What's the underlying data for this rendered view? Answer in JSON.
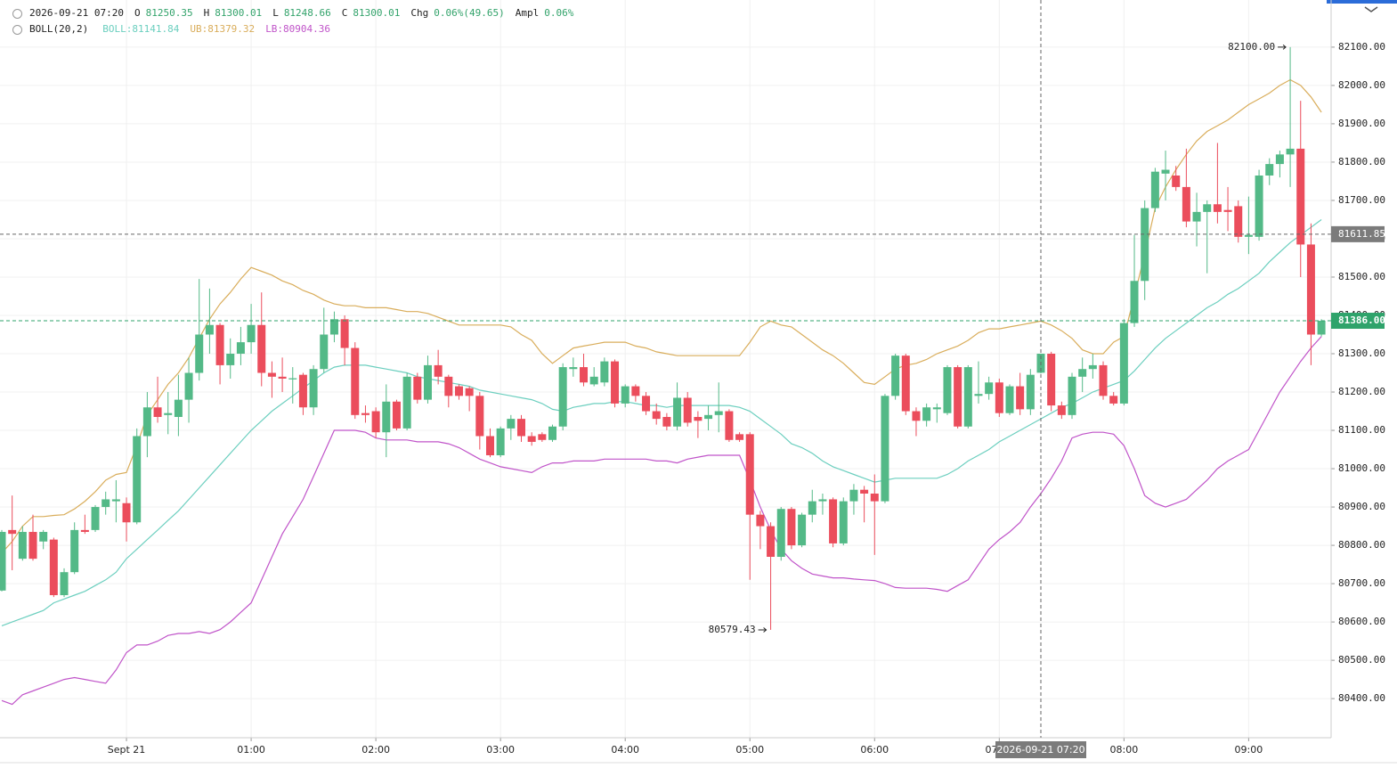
{
  "chart_data": {
    "type": "candlestick",
    "header": {
      "time": "2026-09-21 07:20",
      "fields": [
        {
          "label": "O",
          "value": "81250.35"
        },
        {
          "label": "H",
          "value": "81300.01"
        },
        {
          "label": "L",
          "value": "81248.66"
        },
        {
          "label": "C",
          "value": "81300.01"
        },
        {
          "label": "Chg",
          "value": "0.06%(49.65)"
        },
        {
          "label": "Ampl",
          "value": "0.06%"
        }
      ],
      "indicator": "BOLL(20,2)"
    },
    "up_color": "#53b987",
    "down_color": "#eb4d5c",
    "open": [
      80682,
      80840,
      80765,
      80835,
      80810,
      80815,
      80670,
      80730,
      80840,
      80840,
      80900,
      80915,
      80910,
      80860,
      81085,
      81160,
      81140,
      81135,
      81180,
      81250,
      81350,
      81375,
      81270,
      81300,
      81330,
      81375,
      81250,
      81240,
      81233,
      81245,
      81160,
      81260,
      81350,
      81390,
      81315,
      81145,
      81150,
      81095,
      81175,
      81105,
      81240,
      81180,
      81270,
      81240,
      81215,
      81210,
      81190,
      81085,
      81035,
      81105,
      81130,
      81085,
      81090,
      81075,
      81110,
      81260,
      81265,
      81220,
      81225,
      81280,
      81170,
      81215,
      81190,
      81150,
      81135,
      81110,
      81185,
      81135,
      81130,
      81140,
      81150,
      81090,
      81090,
      80880,
      80850,
      80770,
      80895,
      80800,
      80880,
      80915,
      80920,
      80805,
      80915,
      80945,
      80935,
      80915,
      81190,
      81295,
      81150,
      81125,
      81155,
      81145,
      81265,
      81110,
      81190,
      81195,
      81225,
      81145,
      81215,
      81155,
      81250.35,
      81300,
      81165,
      81140,
      81240,
      81260,
      81270,
      81190,
      81170,
      81380,
      81490,
      81680,
      81770,
      81765,
      81735,
      81645,
      81670,
      81690,
      81675,
      81685,
      81605,
      81605,
      81765,
      81795,
      81820,
      81835,
      81585,
      81350
    ],
    "high": [
      80840,
      80930,
      80850,
      80880,
      80840,
      80820,
      80740,
      80860,
      80880,
      80905,
      80940,
      80970,
      80925,
      81105,
      81200,
      81240,
      81200,
      81245,
      81290,
      81495,
      81470,
      81380,
      81340,
      81370,
      81430,
      81460,
      81280,
      81290,
      81265,
      81250,
      81270,
      81420,
      81410,
      81400,
      81330,
      81165,
      81160,
      81220,
      81180,
      81250,
      81250,
      81295,
      81310,
      81245,
      81220,
      81215,
      81200,
      81105,
      81110,
      81140,
      81140,
      81095,
      81095,
      81115,
      81275,
      81290,
      81300,
      81265,
      81290,
      81285,
      81220,
      81220,
      81200,
      81170,
      81145,
      81225,
      81200,
      81150,
      81165,
      81225,
      81155,
      81095,
      81095,
      80890,
      80860,
      80900,
      80900,
      80885,
      80945,
      80935,
      80925,
      80925,
      80960,
      80955,
      80985,
      81195,
      81300,
      81300,
      81160,
      81170,
      81170,
      81270,
      81270,
      81270,
      81280,
      81240,
      81235,
      81220,
      81250,
      81260,
      81300.01,
      81305,
      81175,
      81250,
      81290,
      81300,
      81280,
      81200,
      81390,
      81610,
      81700,
      81785,
      81830,
      81790,
      81835,
      81720,
      81700,
      81850,
      81735,
      81700,
      81710,
      81780,
      81810,
      81830,
      82100,
      81960,
      81640,
      81390
    ],
    "low": [
      80680,
      80735,
      80760,
      80760,
      80790,
      80665,
      80665,
      80725,
      80830,
      80835,
      80880,
      80860,
      80810,
      80855,
      81030,
      81120,
      81090,
      81085,
      81120,
      81230,
      81300,
      81220,
      81235,
      81270,
      81300,
      81215,
      81185,
      81200,
      81170,
      81140,
      81140,
      81250,
      81330,
      81270,
      81130,
      81120,
      81080,
      81030,
      81100,
      81100,
      81170,
      81170,
      81220,
      81160,
      81180,
      81150,
      81050,
      81030,
      81030,
      81075,
      81070,
      81060,
      81070,
      81070,
      81100,
      81240,
      81215,
      81215,
      81215,
      81160,
      81160,
      81175,
      81140,
      81115,
      81100,
      81100,
      81110,
      81080,
      81100,
      81095,
      81070,
      81070,
      80710,
      80790,
      80579.43,
      80760,
      80790,
      80795,
      80860,
      80880,
      80795,
      80800,
      80880,
      80860,
      80775,
      80910,
      81180,
      81140,
      81085,
      81110,
      81120,
      81140,
      81105,
      81105,
      81170,
      81180,
      81135,
      81140,
      81140,
      81140,
      81248.66,
      81150,
      81130,
      81130,
      81200,
      81235,
      81180,
      81165,
      81165,
      81370,
      81440,
      81670,
      81700,
      81725,
      81630,
      81580,
      81510,
      81640,
      81620,
      81590,
      81560,
      81595,
      81740,
      81760,
      81735,
      81500,
      81270,
      81345
    ],
    "close": [
      80835,
      80830,
      80835,
      80765,
      80835,
      80670,
      80730,
      80840,
      80835,
      80900,
      80920,
      80920,
      80860,
      81085,
      81160,
      81135,
      81145,
      81180,
      81250,
      81350,
      81375,
      81270,
      81300,
      81330,
      81375,
      81250,
      81240,
      81235,
      81236,
      81160,
      81260,
      81350,
      81390,
      81315,
      81140,
      81140,
      81095,
      81175,
      81105,
      81240,
      81180,
      81270,
      81240,
      81190,
      81190,
      81190,
      81085,
      81035,
      81105,
      81130,
      81085,
      81070,
      81075,
      81110,
      81265,
      81265,
      81225,
      81240,
      81280,
      81170,
      81215,
      81190,
      81150,
      81130,
      81110,
      81185,
      81120,
      81125,
      81140,
      81150,
      81075,
      81075,
      80880,
      80850,
      80770,
      80895,
      80800,
      80880,
      80915,
      80920,
      80805,
      80915,
      80945,
      80935,
      80915,
      81190,
      81295,
      81150,
      81125,
      81160,
      81160,
      81265,
      81110,
      81265,
      81195,
      81225,
      81145,
      81215,
      81155,
      81245,
      81300.01,
      81165,
      81140,
      81240,
      81260,
      81270,
      81190,
      81170,
      81380,
      81490,
      81680,
      81775,
      81780,
      81735,
      81645,
      81670,
      81690,
      81670,
      81670,
      81605,
      81610,
      81765,
      81795,
      81820,
      81835,
      81585,
      81350,
      81386
    ],
    "series": [
      {
        "name": "BOLL:81141.84",
        "color": "#6ccfbf",
        "values": [
          80590,
          80600,
          80610,
          80620,
          80630,
          80650,
          80660,
          80670,
          80680,
          80695,
          80710,
          80730,
          80765,
          80790,
          80815,
          80840,
          80865,
          80890,
          80920,
          80950,
          80980,
          81010,
          81040,
          81070,
          81100,
          81125,
          81150,
          81170,
          81190,
          81210,
          81230,
          81250,
          81265,
          81270,
          81270,
          81270,
          81265,
          81260,
          81255,
          81250,
          81240,
          81235,
          81230,
          81225,
          81220,
          81215,
          81205,
          81200,
          81195,
          81190,
          81185,
          81180,
          81170,
          81155,
          81150,
          81160,
          81165,
          81170,
          81170,
          81175,
          81175,
          81170,
          81165,
          81165,
          81160,
          81165,
          81165,
          81165,
          81165,
          81165,
          81165,
          81160,
          81150,
          81130,
          81110,
          81090,
          81065,
          81055,
          81040,
          81020,
          81005,
          80995,
          80985,
          80975,
          80965,
          80970,
          80975,
          80975,
          80975,
          80975,
          80975,
          80985,
          81000,
          81020,
          81035,
          81050,
          81070,
          81085,
          81100,
          81115,
          81130,
          81145,
          81160,
          81170,
          81185,
          81200,
          81210,
          81220,
          81230,
          81255,
          81285,
          81315,
          81340,
          81360,
          81380,
          81400,
          81420,
          81435,
          81455,
          81470,
          81490,
          81510,
          81540,
          81565,
          81590,
          81610,
          81630,
          81650
        ]
      },
      {
        "name": "UB:81379.32",
        "color": "#d9ad5b",
        "values": [
          80780,
          80810,
          80850,
          80875,
          80875,
          80878,
          80880,
          80895,
          80915,
          80940,
          80970,
          80985,
          80990,
          81060,
          81140,
          81180,
          81220,
          81250,
          81290,
          81340,
          81390,
          81430,
          81460,
          81495,
          81525,
          81515,
          81505,
          81490,
          81480,
          81465,
          81455,
          81440,
          81430,
          81425,
          81425,
          81420,
          81420,
          81420,
          81415,
          81410,
          81410,
          81405,
          81395,
          81385,
          81375,
          81375,
          81375,
          81375,
          81375,
          81370,
          81350,
          81335,
          81300,
          81275,
          81295,
          81315,
          81320,
          81325,
          81330,
          81330,
          81330,
          81320,
          81315,
          81305,
          81300,
          81295,
          81295,
          81295,
          81295,
          81295,
          81295,
          81295,
          81330,
          81370,
          81385,
          81375,
          81370,
          81350,
          81330,
          81310,
          81295,
          81275,
          81250,
          81225,
          81220,
          81240,
          81260,
          81270,
          81275,
          81285,
          81300,
          81310,
          81320,
          81335,
          81355,
          81365,
          81365,
          81370,
          81375,
          81380,
          81385,
          81375,
          81360,
          81340,
          81310,
          81300,
          81300,
          81330,
          81345,
          81450,
          81560,
          81680,
          81735,
          81780,
          81820,
          81855,
          81880,
          81895,
          81910,
          81930,
          81950,
          81965,
          81980,
          82000,
          82015,
          82000,
          81970,
          81930
        ]
      },
      {
        "name": "LB:80904.36",
        "color": "#c054c9",
        "values": [
          80395,
          80385,
          80410,
          80420,
          80430,
          80440,
          80450,
          80455,
          80450,
          80445,
          80440,
          80475,
          80520,
          80540,
          80540,
          80550,
          80565,
          80570,
          80570,
          80575,
          80570,
          80580,
          80600,
          80625,
          80650,
          80710,
          80770,
          80830,
          80875,
          80920,
          80980,
          81040,
          81100,
          81100,
          81100,
          81095,
          81080,
          81075,
          81075,
          81075,
          81070,
          81070,
          81070,
          81065,
          81055,
          81040,
          81025,
          81015,
          81005,
          81000,
          80995,
          80990,
          81005,
          81015,
          81015,
          81020,
          81020,
          81020,
          81025,
          81025,
          81025,
          81025,
          81025,
          81020,
          81020,
          81015,
          81025,
          81030,
          81035,
          81035,
          81035,
          81035,
          80970,
          80900,
          80840,
          80790,
          80760,
          80740,
          80725,
          80720,
          80715,
          80715,
          80712,
          80710,
          80708,
          80700,
          80690,
          80688,
          80688,
          80688,
          80685,
          80680,
          80695,
          80710,
          80750,
          80790,
          80815,
          80835,
          80860,
          80900,
          80935,
          80975,
          81020,
          81080,
          81090,
          81095,
          81095,
          81090,
          81060,
          81000,
          80930,
          80910,
          80900,
          80910,
          80920,
          80945,
          80970,
          81000,
          81020,
          81035,
          81050,
          81100,
          81150,
          81200,
          81240,
          81280,
          81315,
          81345
        ]
      }
    ],
    "ylim": [
      80298,
      82223
    ],
    "yticks": [
      {
        "value": 80400,
        "label": "80400.00"
      },
      {
        "value": 80500,
        "label": "80500.00"
      },
      {
        "value": 80600,
        "label": "80600.00"
      },
      {
        "value": 80700,
        "label": "80700.00"
      },
      {
        "value": 80800,
        "label": "80800.00"
      },
      {
        "value": 80900,
        "label": "80900.00"
      },
      {
        "value": 81000,
        "label": "81000.00"
      },
      {
        "value": 81100,
        "label": "81100.00"
      },
      {
        "value": 81200,
        "label": "81200.00"
      },
      {
        "value": 81300,
        "label": "81300.00"
      },
      {
        "value": 81400,
        "label": "81400.00"
      },
      {
        "value": 81500,
        "label": "81500.00"
      },
      {
        "value": 81600,
        "label": "81600.00"
      },
      {
        "value": 81700,
        "label": "81700.00"
      },
      {
        "value": 81800,
        "label": "81800.00"
      },
      {
        "value": 81900,
        "label": "81900.00"
      },
      {
        "value": 82000,
        "label": "82000.00"
      },
      {
        "value": 82100,
        "label": "82100.00"
      }
    ],
    "xticks": [
      {
        "value": 12,
        "label": "Sept 21"
      },
      {
        "value": 24,
        "label": "01:00"
      },
      {
        "value": 36,
        "label": "02:00"
      },
      {
        "value": 48,
        "label": "03:00"
      },
      {
        "value": 60,
        "label": "04:00"
      },
      {
        "value": 72,
        "label": "05:00"
      },
      {
        "value": 84,
        "label": "06:00"
      },
      {
        "value": 96,
        "label": "07:00"
      },
      {
        "value": 108,
        "label": "08:00"
      },
      {
        "value": 120,
        "label": "09:00"
      }
    ],
    "grid": true,
    "annotations": [
      {
        "label": "82100.00",
        "value": 82100
      },
      {
        "label": "80579.43",
        "value": 80579.43
      }
    ],
    "crosshair": {
      "x": {
        "value": 100,
        "label": "2026-09-21 07:20"
      },
      "y": {
        "value": 81611.85,
        "label": "81611.85"
      }
    },
    "last_price": {
      "value": 81386,
      "label": "81386.00",
      "color": "#2fa36b"
    }
  }
}
